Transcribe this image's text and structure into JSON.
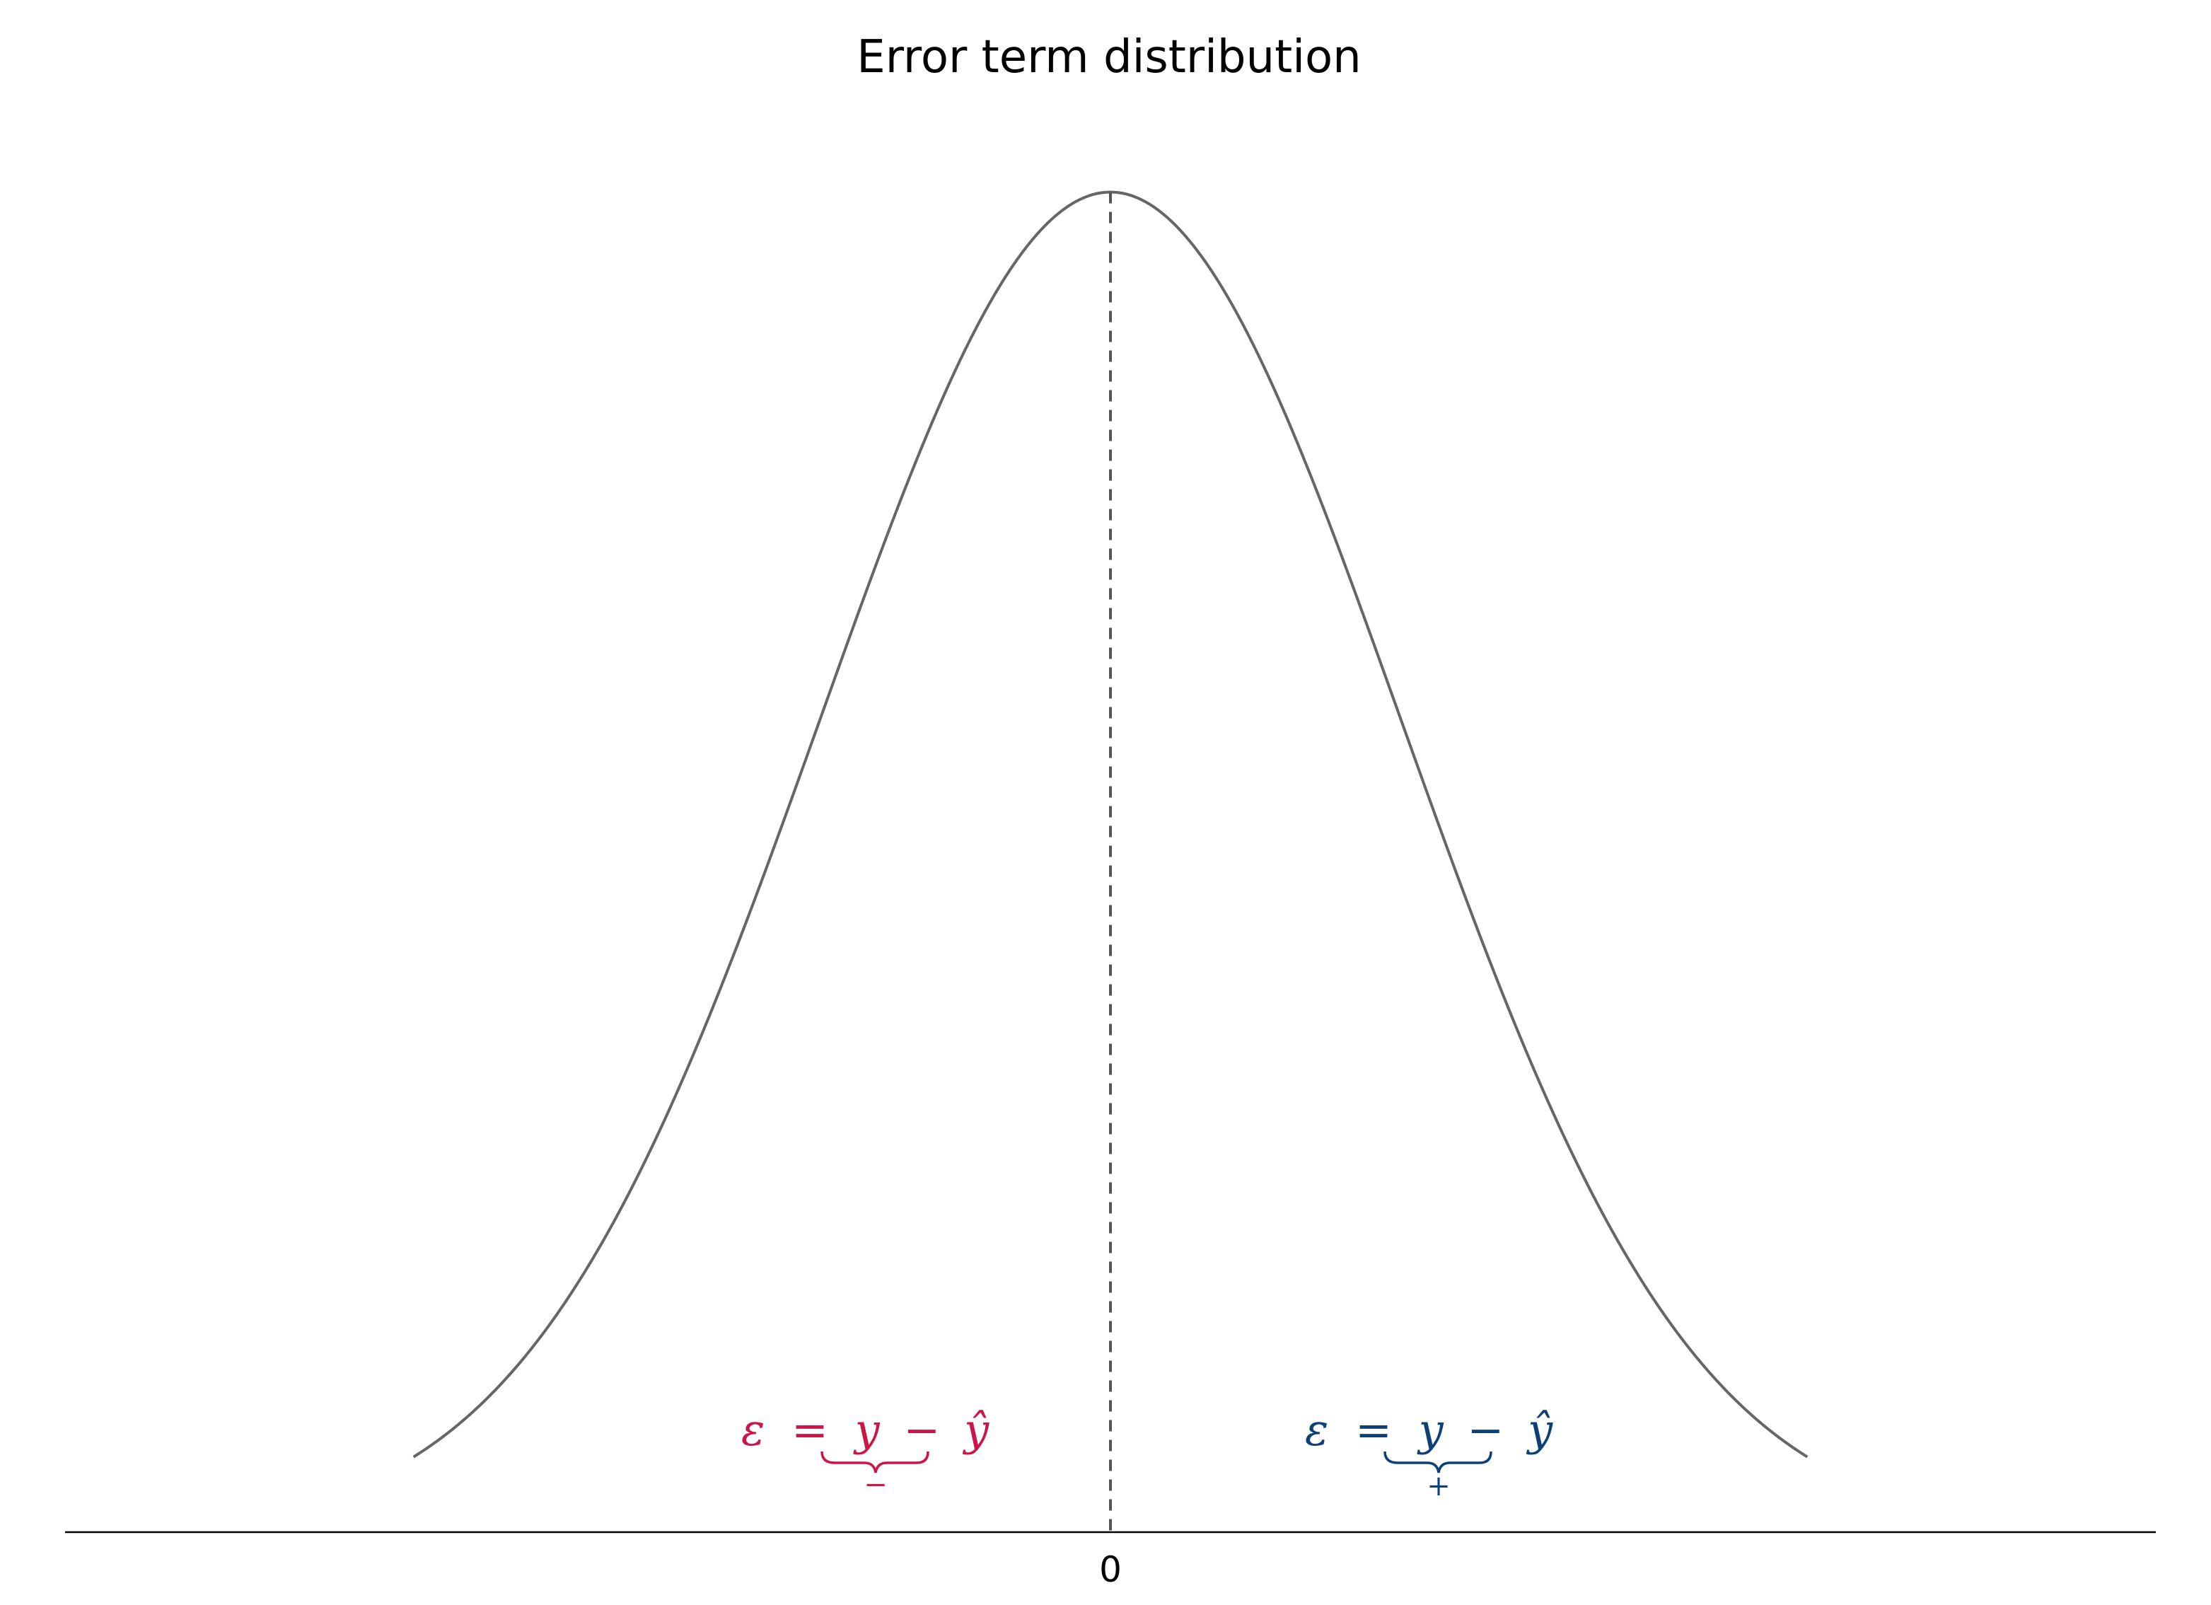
{
  "chart_data": {
    "type": "line",
    "title": "Error term distribution",
    "xlabel": "",
    "ylabel": "",
    "xlim": [
      -3.6,
      3.6
    ],
    "ylim": [
      0,
      1.08
    ],
    "x_ticks": [
      {
        "value": 0,
        "label": "0"
      }
    ],
    "grid": false,
    "series": [
      {
        "curve": "normal_pdf",
        "mean": 0,
        "sd": 1,
        "x_range": [
          -2.4,
          2.4
        ],
        "color": "#666666"
      }
    ],
    "vline": {
      "x": 0,
      "style": "dashed",
      "color": "#555555"
    },
    "annotations": [
      {
        "side": "left",
        "text": "ε = y − ŷ",
        "parts": {
          "eps": "ε",
          "eq": "=",
          "y": "y",
          "minus": "−",
          "yhat": "ŷ"
        },
        "brace_label": "−",
        "color": "#cc1648"
      },
      {
        "side": "right",
        "text": "ε = y − ŷ",
        "parts": {
          "eps": "ε",
          "eq": "=",
          "y": "y",
          "minus": "−",
          "yhat": "ŷ"
        },
        "brace_label": "+",
        "color": "#0e4078"
      }
    ]
  }
}
